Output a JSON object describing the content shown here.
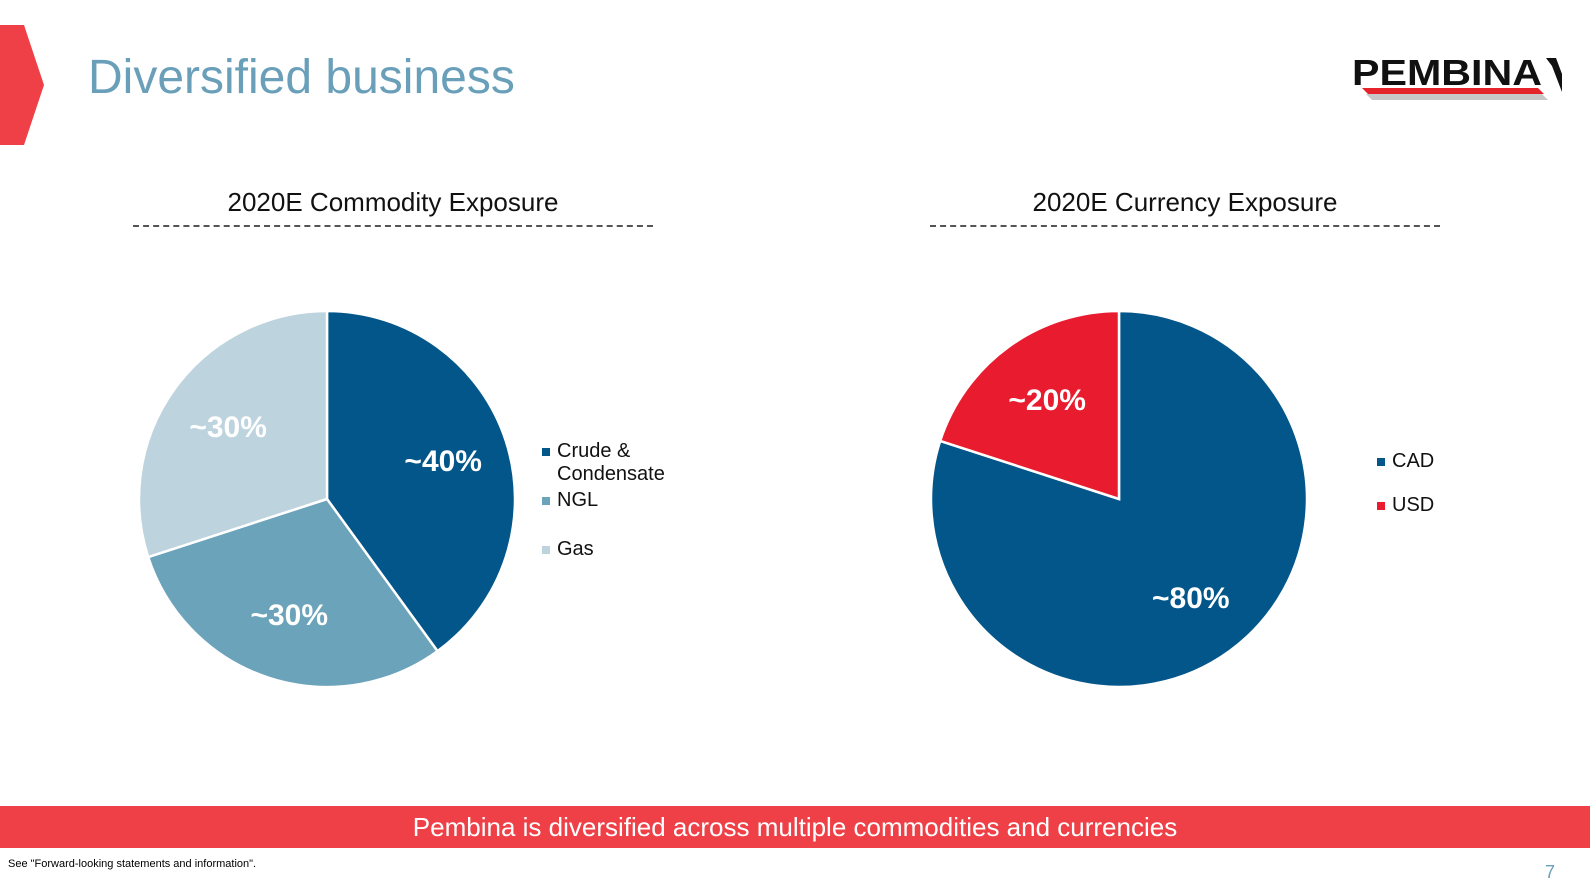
{
  "slide": {
    "title": "Diversified business",
    "banner": "Pembina is diversified across multiple commodities and currencies",
    "footnote": "See \"Forward-looking statements and information\".",
    "page_number": "7"
  },
  "logo": {
    "text": "PEMBINA",
    "colors": {
      "text": "#111111",
      "stripe_red": "#e5232b",
      "stripe_gray": "#c7c7c7"
    }
  },
  "colors": {
    "accent_red": "#ef4047",
    "title_blue": "#6a9fba"
  },
  "chart_data": [
    {
      "type": "pie",
      "title": "2020E Commodity Exposure",
      "categories": [
        "Crude & Condensate",
        "NGL",
        "Gas"
      ],
      "values": [
        40,
        30,
        30
      ],
      "data_labels": [
        "~40%",
        "~30%",
        "~30%"
      ],
      "colors": [
        "#03568a",
        "#6ba3ba",
        "#bdd3de"
      ],
      "legend_position": "right"
    },
    {
      "type": "pie",
      "title": "2020E Currency Exposure",
      "categories": [
        "CAD",
        "USD"
      ],
      "values": [
        80,
        20
      ],
      "data_labels": [
        "~80%",
        "~20%"
      ],
      "colors": [
        "#03568a",
        "#e81c2e"
      ],
      "legend_position": "right"
    }
  ]
}
